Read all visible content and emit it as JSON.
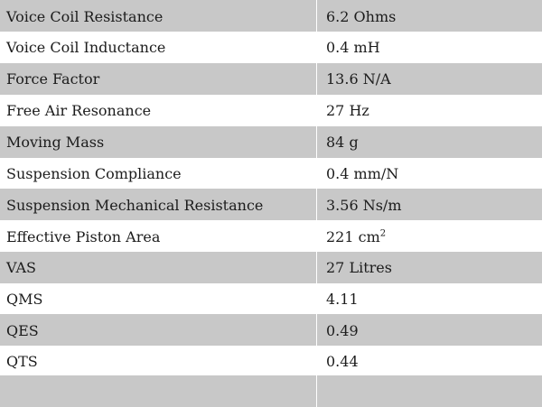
{
  "table": {
    "rows": [
      {
        "label": "Voice Coil Resistance",
        "value": "6.2 Ohms"
      },
      {
        "label": "Voice Coil Inductance",
        "value": "0.4 mH"
      },
      {
        "label": "Force Factor",
        "value": "13.6 N/A"
      },
      {
        "label": "Free Air Resonance",
        "value": "27 Hz"
      },
      {
        "label": "Moving Mass",
        "value": "84 g"
      },
      {
        "label": "Suspension Compliance",
        "value": "0.4 mm/N"
      },
      {
        "label": "Suspension Mechanical Resistance",
        "value": "3.56 Ns/m"
      },
      {
        "label": "Effective Piston Area",
        "value": "221 cm",
        "sup": "2"
      },
      {
        "label": "VAS",
        "value": "27 Litres"
      },
      {
        "label": "QMS",
        "value": "4.11"
      },
      {
        "label": "QES",
        "value": "0.49"
      },
      {
        "label": "QTS",
        "value": "0.44"
      }
    ]
  },
  "colors": {
    "row_gray": "#c8c8c8",
    "row_white": "#ffffff",
    "text": "#1c1c1c"
  }
}
